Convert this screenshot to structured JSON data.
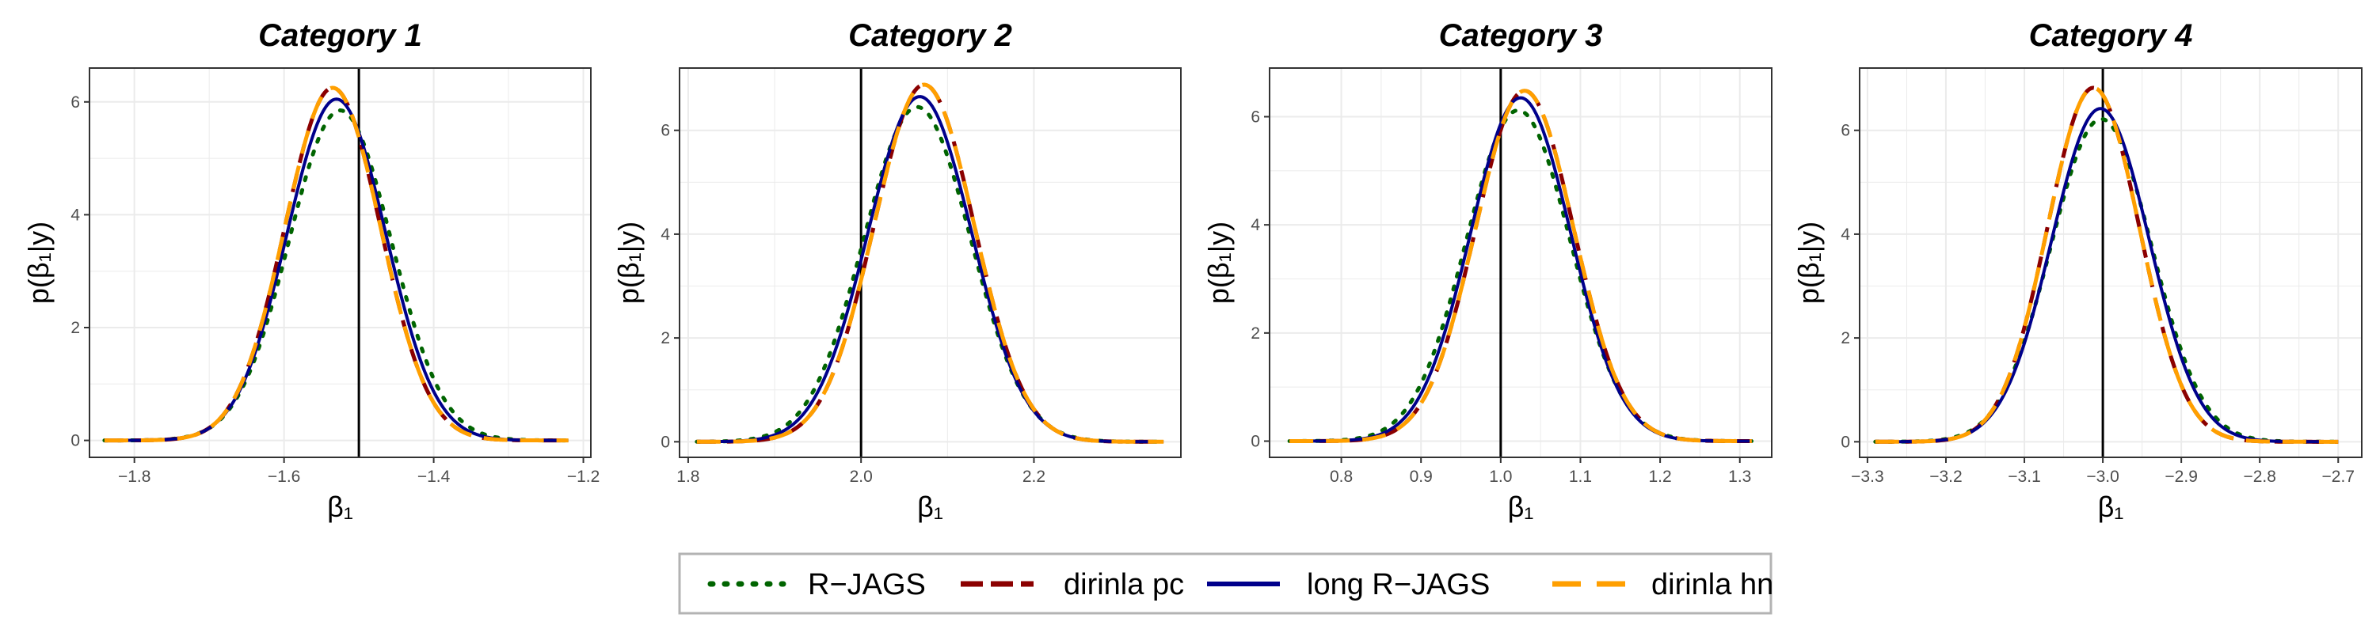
{
  "chart_data": {
    "type": "line",
    "panels": [
      {
        "title": "Category 1",
        "xlabel": "β₁",
        "ylabel": "p(β₁|y)",
        "xlim": [
          -1.86,
          -1.19
        ],
        "ylim": [
          -0.3,
          6.6
        ],
        "xticks": [
          -1.8,
          -1.6,
          -1.4,
          -1.2
        ],
        "xtick_labels": [
          "−1.8",
          "−1.6",
          "−1.4",
          "−1.2"
        ],
        "yticks": [
          0,
          2,
          4,
          6
        ],
        "ytick_labels": [
          "0",
          "2",
          "4",
          "6"
        ],
        "x_range": [
          -1.84,
          -1.22
        ],
        "vline": -1.5,
        "series": [
          {
            "name": "R−JAGS",
            "mean": -1.525,
            "peak": 5.85
          },
          {
            "name": "dirinla pc",
            "mean": -1.535,
            "peak": 6.25
          },
          {
            "name": "long R−JAGS",
            "mean": -1.53,
            "peak": 6.05
          },
          {
            "name": "dirinla hn",
            "mean": -1.535,
            "peak": 6.25
          }
        ]
      },
      {
        "title": "Category 2",
        "xlabel": "β₁",
        "ylabel": "p(β₁|y)",
        "xlim": [
          1.79,
          2.37
        ],
        "ylim": [
          -0.3,
          7.2
        ],
        "xticks": [
          1.8,
          2.0,
          2.2
        ],
        "xtick_labels": [
          "1.8",
          "2.0",
          "2.2"
        ],
        "yticks": [
          0,
          2,
          4,
          6
        ],
        "ytick_labels": [
          "0",
          "2",
          "4",
          "6"
        ],
        "x_range": [
          1.81,
          2.35
        ],
        "vline": 2.0,
        "series": [
          {
            "name": "R−JAGS",
            "mean": 2.065,
            "peak": 6.45
          },
          {
            "name": "dirinla pc",
            "mean": 2.073,
            "peak": 6.88
          },
          {
            "name": "long R−JAGS",
            "mean": 2.068,
            "peak": 6.65
          },
          {
            "name": "dirinla hn",
            "mean": 2.073,
            "peak": 6.88
          }
        ]
      },
      {
        "title": "Category 3",
        "xlabel": "β₁",
        "ylabel": "p(β₁|y)",
        "xlim": [
          0.71,
          1.34
        ],
        "ylim": [
          -0.3,
          6.9
        ],
        "xticks": [
          0.8,
          0.9,
          1.0,
          1.1,
          1.2,
          1.3
        ],
        "xtick_labels": [
          "0.8",
          "0.9",
          "1.0",
          "1.1",
          "1.2",
          "1.3"
        ],
        "yticks": [
          0,
          2,
          4,
          6
        ],
        "ytick_labels": [
          "0",
          "2",
          "4",
          "6"
        ],
        "x_range": [
          0.735,
          1.315
        ],
        "vline": 1.0,
        "series": [
          {
            "name": "R−JAGS",
            "mean": 1.022,
            "peak": 6.12
          },
          {
            "name": "dirinla pc",
            "mean": 1.03,
            "peak": 6.48
          },
          {
            "name": "long R−JAGS",
            "mean": 1.025,
            "peak": 6.35
          },
          {
            "name": "dirinla hn",
            "mean": 1.03,
            "peak": 6.48
          }
        ]
      },
      {
        "title": "Category 4",
        "xlabel": "β₁",
        "ylabel": "p(β₁|y)",
        "xlim": [
          -3.31,
          -2.67
        ],
        "ylim": [
          -0.3,
          7.2
        ],
        "xticks": [
          -3.3,
          -3.2,
          -3.1,
          -3.0,
          -2.9,
          -2.8,
          -2.7
        ],
        "xtick_labels": [
          "−3.3",
          "−3.2",
          "−3.1",
          "−3.0",
          "−2.9",
          "−2.8",
          "−2.7"
        ],
        "yticks": [
          0,
          2,
          4,
          6
        ],
        "ytick_labels": [
          "0",
          "2",
          "4",
          "6"
        ],
        "x_range": [
          -3.29,
          -2.7
        ],
        "vline": -3.0,
        "series": [
          {
            "name": "R−JAGS",
            "mean": -3.002,
            "peak": 6.22
          },
          {
            "name": "dirinla pc",
            "mean": -3.012,
            "peak": 6.82
          },
          {
            "name": "long R−JAGS",
            "mean": -3.003,
            "peak": 6.42
          },
          {
            "name": "dirinla hn",
            "mean": -3.012,
            "peak": 6.82
          }
        ]
      }
    ],
    "legend": {
      "placement": "bottom",
      "entries": [
        {
          "label": "R−JAGS",
          "color": "#006400",
          "style": "dotted"
        },
        {
          "label": "dirinla pc",
          "color": "#8b0000",
          "style": "dashed"
        },
        {
          "label": "long R−JAGS",
          "color": "#00008b",
          "style": "solid"
        },
        {
          "label": "dirinla hn",
          "color": "#ff9f00",
          "style": "longdash"
        }
      ]
    },
    "grid": true,
    "colors": {
      "R−JAGS": "#006400",
      "dirinla pc": "#8b0000",
      "long R−JAGS": "#00008b",
      "dirinla hn": "#ff9f00",
      "grid": "#ebebeb",
      "vline": "#000000"
    }
  }
}
